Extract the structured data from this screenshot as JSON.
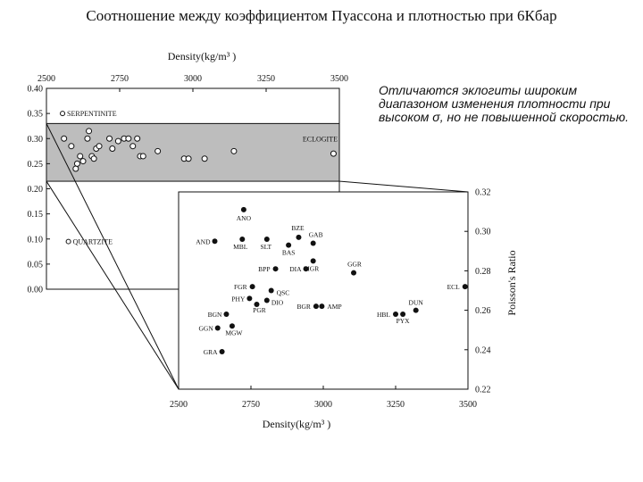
{
  "slide": {
    "title": "Соотношение между коэффициентом Пуассона и плотностью при 6Кбар",
    "annotation": "Отличаются эклогиты широким диапазоном изменения плотности при высоком σ, но не повышенной скоростью."
  },
  "colors": {
    "band_fill": "#bdbdbd",
    "ink": "#111111",
    "background": "#ffffff"
  },
  "chart_data": [
    {
      "type": "scatter",
      "xlabel": "Density(kg/m³ )",
      "ylabel": "",
      "xlim": [
        2500,
        3500
      ],
      "ylim": [
        0.0,
        0.4
      ],
      "x_ticks": [
        "2500",
        "2750",
        "3000",
        "3250",
        "3500"
      ],
      "y_ticks": [
        "0.00",
        "0.05",
        "0.10",
        "0.15",
        "0.20",
        "0.25",
        "0.30",
        "0.35",
        "0.40"
      ],
      "band": {
        "label": "ECLOGITE",
        "y_range": [
          0.215,
          0.33
        ]
      },
      "label_points": [
        {
          "name": "SERPENTINITE",
          "x": 2555,
          "y": 0.35
        },
        {
          "name": "QUARTZITE",
          "x": 2575,
          "y": 0.095
        }
      ],
      "series": [
        {
          "marker": "open-circle",
          "points": [
            [
              2560,
              0.3
            ],
            [
              2585,
              0.285
            ],
            [
              2600,
              0.24
            ],
            [
              2605,
              0.25
            ],
            [
              2615,
              0.265
            ],
            [
              2625,
              0.255
            ],
            [
              2640,
              0.3
            ],
            [
              2645,
              0.315
            ],
            [
              2655,
              0.265
            ],
            [
              2662,
              0.26
            ],
            [
              2670,
              0.28
            ],
            [
              2680,
              0.285
            ],
            [
              2715,
              0.3
            ],
            [
              2725,
              0.28
            ],
            [
              2745,
              0.295
            ],
            [
              2765,
              0.3
            ],
            [
              2780,
              0.3
            ],
            [
              2795,
              0.285
            ],
            [
              2810,
              0.3
            ],
            [
              2820,
              0.265
            ],
            [
              2830,
              0.265
            ],
            [
              2880,
              0.275
            ],
            [
              2970,
              0.26
            ],
            [
              2985,
              0.26
            ],
            [
              3040,
              0.26
            ],
            [
              3140,
              0.275
            ],
            [
              3480,
              0.27
            ]
          ]
        }
      ]
    },
    {
      "type": "scatter",
      "xlabel": "Density(kg/m³ )",
      "ylabel": "Poisson's Ratio",
      "xlim": [
        2500,
        3500
      ],
      "ylim": [
        0.22,
        0.32
      ],
      "x_ticks": [
        "2500",
        "2750",
        "3000",
        "3250",
        "3500"
      ],
      "y_ticks": [
        "0.22",
        "0.24",
        "0.26",
        "0.28",
        "0.30",
        "0.32"
      ],
      "series": [
        {
          "marker": "filled-circle",
          "points": [
            {
              "label": "ANO",
              "x": 2725,
              "y": 0.311
            },
            {
              "label": "AND",
              "x": 2625,
              "y": 0.295
            },
            {
              "label": "MBL",
              "x": 2720,
              "y": 0.296
            },
            {
              "label": "SLT",
              "x": 2805,
              "y": 0.296
            },
            {
              "label": "BZE",
              "x": 2915,
              "y": 0.297
            },
            {
              "label": "GAB",
              "x": 2965,
              "y": 0.294
            },
            {
              "label": "BAS",
              "x": 2880,
              "y": 0.293
            },
            {
              "label": "MGR",
              "x": 2965,
              "y": 0.285
            },
            {
              "label": "BPP",
              "x": 2835,
              "y": 0.281
            },
            {
              "label": "DIA",
              "x": 2940,
              "y": 0.281
            },
            {
              "label": "GGR",
              "x": 3105,
              "y": 0.279
            },
            {
              "label": "ECL",
              "x": 3490,
              "y": 0.272
            },
            {
              "label": "FGR",
              "x": 2755,
              "y": 0.272
            },
            {
              "label": "QSC",
              "x": 2820,
              "y": 0.27
            },
            {
              "label": "PHY",
              "x": 2745,
              "y": 0.266
            },
            {
              "label": "DIO",
              "x": 2805,
              "y": 0.265
            },
            {
              "label": "PGR",
              "x": 2770,
              "y": 0.263
            },
            {
              "label": "BGR",
              "x": 2975,
              "y": 0.262
            },
            {
              "label": "AMP",
              "x": 2995,
              "y": 0.262
            },
            {
              "label": "BGN",
              "x": 2665,
              "y": 0.258
            },
            {
              "label": "DUN",
              "x": 3320,
              "y": 0.26
            },
            {
              "label": "HBL",
              "x": 3250,
              "y": 0.258
            },
            {
              "label": "PYX",
              "x": 3275,
              "y": 0.258
            },
            {
              "label": "GGN",
              "x": 2635,
              "y": 0.251
            },
            {
              "label": "MGW",
              "x": 2685,
              "y": 0.252
            },
            {
              "label": "GRA",
              "x": 2650,
              "y": 0.239
            }
          ]
        }
      ]
    }
  ]
}
